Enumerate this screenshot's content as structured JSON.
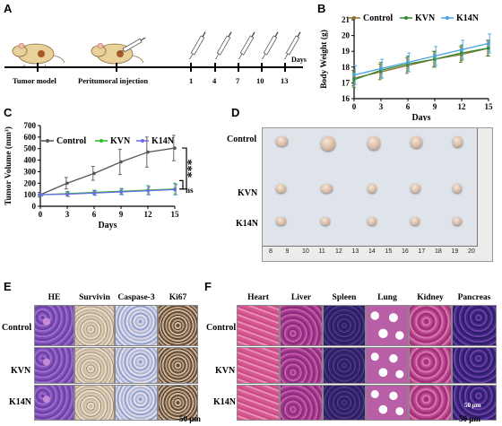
{
  "panels": {
    "A": "A",
    "B": "B",
    "C": "C",
    "D": "D",
    "E": "E",
    "F": "F"
  },
  "timeline": {
    "labels": {
      "model": "Tumor model",
      "inject": "Peritumoral injection",
      "days": "Days"
    },
    "ticks": [
      "1",
      "4",
      "7",
      "10",
      "13"
    ]
  },
  "panel_b": {
    "chart_data": {
      "type": "line",
      "xlabel": "Days",
      "ylabel": "Body Weight (g)",
      "x": [
        0,
        3,
        6,
        9,
        12,
        15
      ],
      "xticks": [
        "0",
        "3",
        "6",
        "9",
        "12",
        "15"
      ],
      "yticks": [
        "16",
        "17",
        "18",
        "19",
        "20",
        "21"
      ],
      "ylim": [
        16,
        21
      ],
      "xlim": [
        0,
        15
      ],
      "legend_placement": "top",
      "series": [
        {
          "name": "Control",
          "color": "#8B6D2E",
          "values": [
            17.3,
            17.7,
            18.1,
            18.5,
            18.8,
            19.2
          ],
          "err": [
            0.5,
            0.5,
            0.5,
            0.5,
            0.5,
            0.5
          ]
        },
        {
          "name": "KVN",
          "color": "#2E8B2E",
          "values": [
            17.2,
            17.8,
            18.2,
            18.5,
            18.9,
            19.2
          ],
          "err": [
            0.5,
            0.5,
            0.5,
            0.5,
            0.5,
            0.5
          ]
        },
        {
          "name": "K14N",
          "color": "#4AA3E0",
          "values": [
            17.5,
            17.9,
            18.3,
            18.7,
            19.1,
            19.5
          ],
          "err": [
            0.6,
            0.6,
            0.6,
            0.6,
            0.6,
            0.6
          ]
        }
      ]
    }
  },
  "panel_c": {
    "chart_data": {
      "type": "line",
      "xlabel": "Days",
      "ylabel": "Tumor Volume (mm³)",
      "x": [
        0,
        3,
        6,
        9,
        12,
        15
      ],
      "xticks": [
        "0",
        "3",
        "6",
        "9",
        "12",
        "15"
      ],
      "yticks": [
        "0",
        "100",
        "200",
        "300",
        "400",
        "500",
        "600",
        "700"
      ],
      "ylim": [
        0,
        700
      ],
      "xlim": [
        0,
        15
      ],
      "legend_placement": "top",
      "series": [
        {
          "name": "Control",
          "color": "#555555",
          "values": [
            100,
            200,
            285,
            385,
            470,
            505
          ],
          "err": [
            20,
            50,
            60,
            110,
            130,
            110
          ]
        },
        {
          "name": "KVN",
          "color": "#2EBB2E",
          "values": [
            100,
            110,
            120,
            130,
            140,
            150
          ],
          "err": [
            10,
            20,
            20,
            25,
            40,
            50
          ]
        },
        {
          "name": "K14N",
          "color": "#6A6AE6",
          "values": [
            100,
            105,
            115,
            125,
            135,
            145
          ],
          "err": [
            10,
            20,
            20,
            25,
            35,
            45
          ]
        }
      ],
      "annotations": [
        "***",
        "ns"
      ]
    }
  },
  "panel_d": {
    "rows": [
      "Control",
      "KVN",
      "K14N"
    ],
    "ruler": [
      "8",
      "9",
      "10",
      "11",
      "12",
      "13",
      "14",
      "15",
      "16",
      "17",
      "18",
      "19",
      "20"
    ]
  },
  "panel_e": {
    "cols": [
      "HE",
      "Survivin",
      "Caspase-3",
      "Ki67"
    ],
    "rows": [
      "Control",
      "KVN",
      "K14N"
    ],
    "scale": "50 μm"
  },
  "panel_f": {
    "cols": [
      "Heart",
      "Liver",
      "Spleen",
      "Lung",
      "Kidney",
      "Pancreas"
    ],
    "rows": [
      "Control",
      "KVN",
      "K14N"
    ],
    "scale": "50 μm",
    "scale_inner": "50 μm"
  },
  "colors": {
    "ruler_bg": "#ececec",
    "plate_bg": "#dfe3ea"
  }
}
